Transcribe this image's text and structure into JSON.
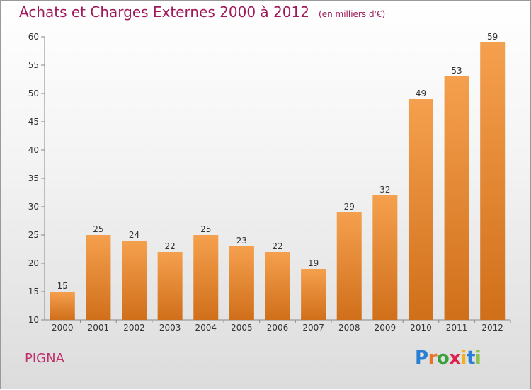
{
  "header": {
    "title": "Achats et Charges Externes 2000 à 2012",
    "unit": "(en milliers d'€)"
  },
  "footer": {
    "commune": "PIGNA",
    "logo_letters": [
      "P",
      "r",
      "o",
      "x",
      "i",
      "t",
      "i"
    ],
    "logo_colors": [
      "#2a7fd4",
      "#e8742a",
      "#3aa03a",
      "#e02050",
      "#f0b020",
      "#2a7fd4",
      "#8bc34a"
    ]
  },
  "colors": {
    "bar_top": "#f5a04e",
    "bar_bottom": "#d06f1a",
    "title": "#a01a5a"
  },
  "chart_data": {
    "type": "bar",
    "categories": [
      "2000",
      "2001",
      "2002",
      "2003",
      "2004",
      "2005",
      "2006",
      "2007",
      "2008",
      "2009",
      "2010",
      "2011",
      "2012"
    ],
    "values": [
      15,
      25,
      24,
      22,
      25,
      23,
      22,
      19,
      29,
      32,
      49,
      53,
      59
    ],
    "ylim": [
      10,
      60
    ],
    "yticks": [
      10,
      15,
      20,
      25,
      30,
      35,
      40,
      45,
      50,
      55,
      60
    ],
    "grid": false
  }
}
